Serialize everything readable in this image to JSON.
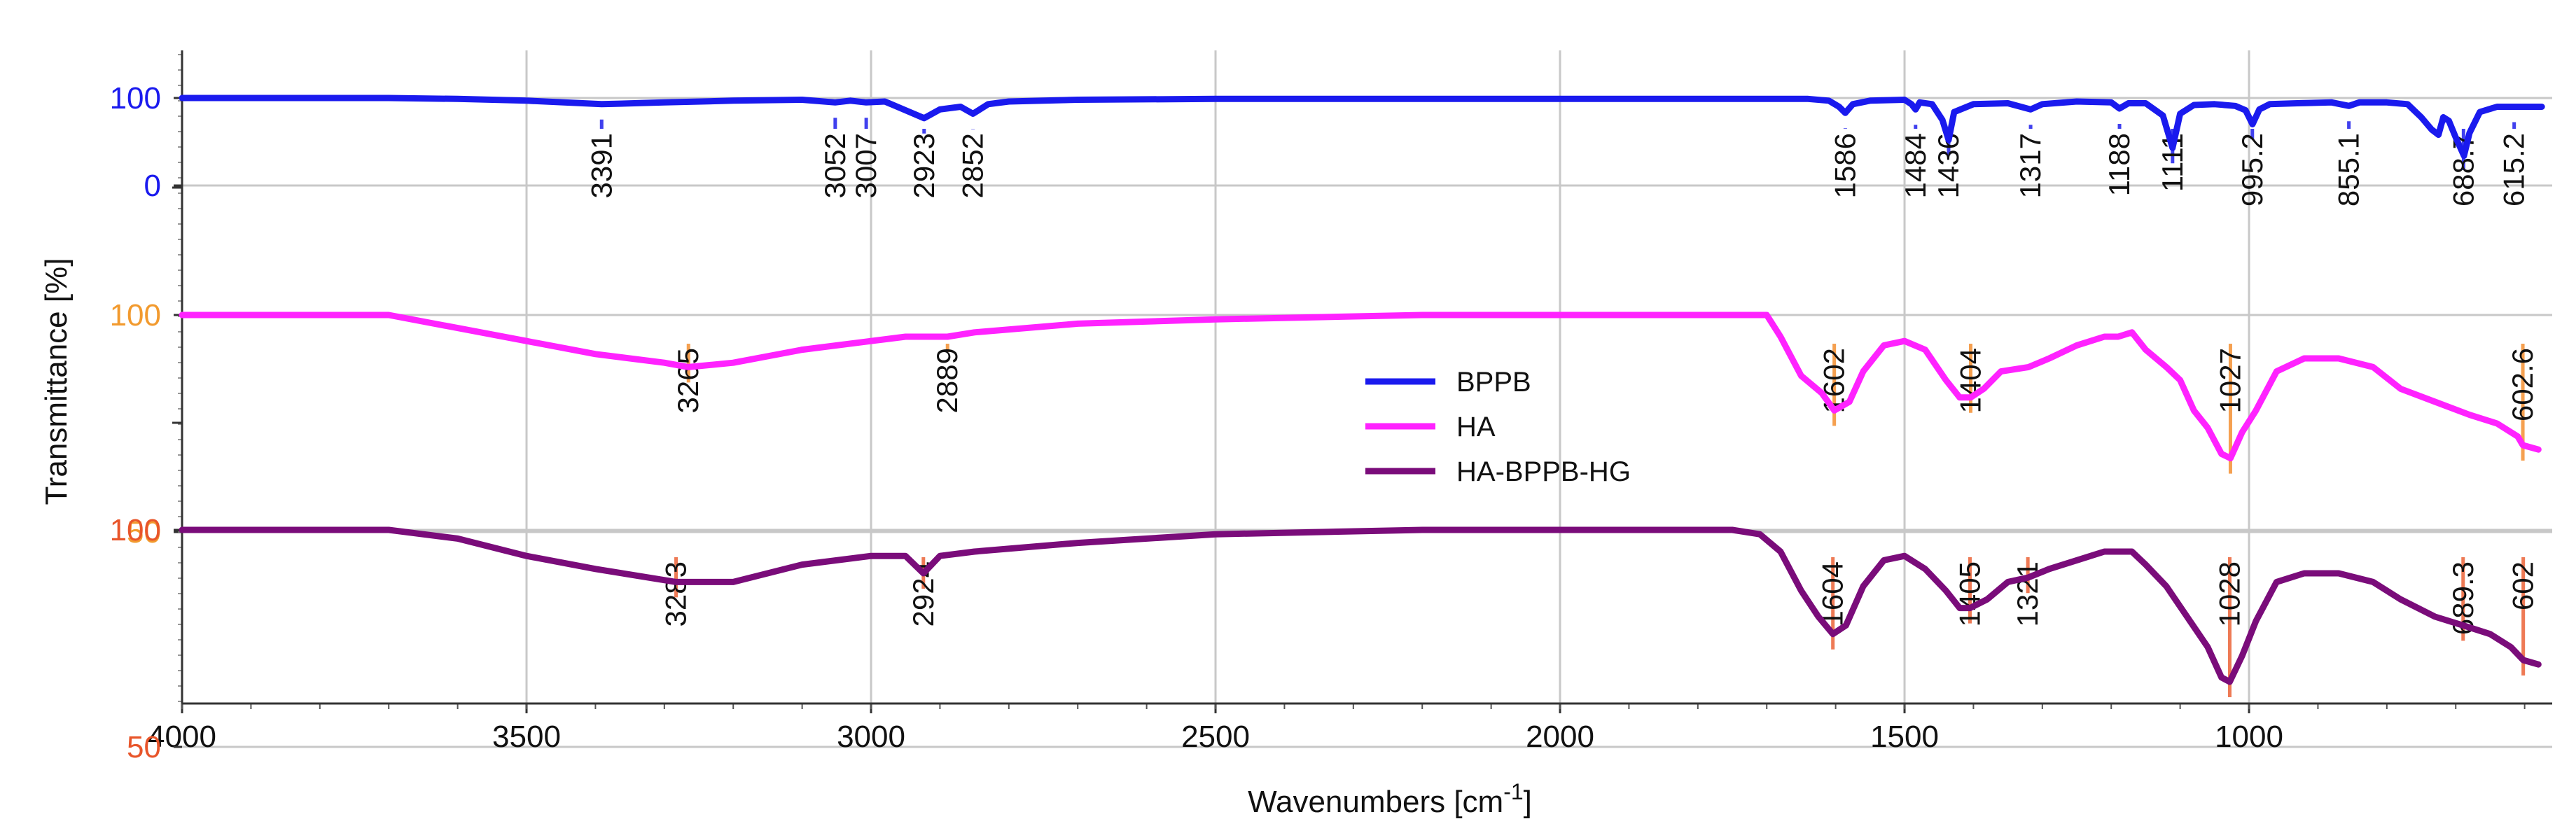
{
  "chart_data": {
    "type": "line",
    "xlabel": "Wavenumbers [cm",
    "xlabel_sup": "-1",
    "xlabel_close": "]",
    "ylabel": "Transmittance [%]",
    "xlim": [
      4000,
      560
    ],
    "x_ticks": [
      4000,
      3500,
      3000,
      2500,
      2000,
      1500,
      1000
    ],
    "grid": true,
    "legend_position": "center",
    "series": [
      {
        "name": "BPPB",
        "color": "#1a1aee",
        "label_color": "#1a1aee",
        "peak_line_color": "#4040ee",
        "y_ticks": [
          "100",
          "0"
        ],
        "points": [
          [
            4000,
            100
          ],
          [
            3700,
            100
          ],
          [
            3600,
            99
          ],
          [
            3500,
            97
          ],
          [
            3391,
            93
          ],
          [
            3300,
            95
          ],
          [
            3200,
            97
          ],
          [
            3100,
            98
          ],
          [
            3052,
            95
          ],
          [
            3030,
            97
          ],
          [
            3007,
            95
          ],
          [
            2980,
            96
          ],
          [
            2950,
            86
          ],
          [
            2923,
            77
          ],
          [
            2900,
            87
          ],
          [
            2870,
            90
          ],
          [
            2852,
            82
          ],
          [
            2830,
            93
          ],
          [
            2800,
            96
          ],
          [
            2700,
            98
          ],
          [
            2500,
            99
          ],
          [
            2300,
            99
          ],
          [
            2000,
            99
          ],
          [
            1800,
            99
          ],
          [
            1700,
            99
          ],
          [
            1640,
            99
          ],
          [
            1610,
            97
          ],
          [
            1595,
            90
          ],
          [
            1586,
            83
          ],
          [
            1575,
            93
          ],
          [
            1550,
            97
          ],
          [
            1500,
            98
          ],
          [
            1490,
            93
          ],
          [
            1484,
            87
          ],
          [
            1478,
            95
          ],
          [
            1460,
            93
          ],
          [
            1445,
            75
          ],
          [
            1436,
            52
          ],
          [
            1428,
            84
          ],
          [
            1400,
            93
          ],
          [
            1350,
            94
          ],
          [
            1317,
            87
          ],
          [
            1300,
            93
          ],
          [
            1250,
            96
          ],
          [
            1200,
            95
          ],
          [
            1188,
            88
          ],
          [
            1175,
            94
          ],
          [
            1150,
            94
          ],
          [
            1125,
            80
          ],
          [
            1111,
            43
          ],
          [
            1100,
            82
          ],
          [
            1080,
            92
          ],
          [
            1050,
            93
          ],
          [
            1020,
            91
          ],
          [
            1005,
            86
          ],
          [
            995,
            70
          ],
          [
            985,
            87
          ],
          [
            970,
            93
          ],
          [
            930,
            94
          ],
          [
            880,
            95
          ],
          [
            855,
            91
          ],
          [
            840,
            95
          ],
          [
            800,
            95
          ],
          [
            770,
            93
          ],
          [
            750,
            78
          ],
          [
            735,
            64
          ],
          [
            725,
            58
          ],
          [
            718,
            78
          ],
          [
            710,
            74
          ],
          [
            700,
            55
          ],
          [
            688,
            34
          ],
          [
            680,
            60
          ],
          [
            665,
            84
          ],
          [
            640,
            90
          ],
          [
            615,
            90
          ],
          [
            600,
            90
          ],
          [
            575,
            90
          ]
        ],
        "peaks": [
          "3391",
          "3052",
          "3007",
          "2923",
          "2852",
          "1586",
          "1484",
          "1436",
          "1317",
          "1188",
          "1111",
          "995.2",
          "855.1",
          "688.7",
          "615.2"
        ],
        "peak_x": [
          3391,
          3052,
          3007,
          2923,
          2852,
          1586,
          1484,
          1436,
          1317,
          1188,
          1111,
          995.2,
          855.1,
          688.7,
          615.2
        ]
      },
      {
        "name": "HA",
        "color": "#ff22ff",
        "label_color": "#f29a2e",
        "peak_line_color": "#f5a050",
        "y_ticks": [
          "100",
          "50"
        ],
        "points": [
          [
            4000,
            100
          ],
          [
            3700,
            100
          ],
          [
            3600,
            97
          ],
          [
            3500,
            94
          ],
          [
            3400,
            91
          ],
          [
            3300,
            89
          ],
          [
            3265,
            88
          ],
          [
            3200,
            89
          ],
          [
            3100,
            92
          ],
          [
            3000,
            94
          ],
          [
            2950,
            95
          ],
          [
            2889,
            95
          ],
          [
            2850,
            96
          ],
          [
            2700,
            98
          ],
          [
            2500,
            99
          ],
          [
            2200,
            100
          ],
          [
            1900,
            100
          ],
          [
            1750,
            100
          ],
          [
            1700,
            100
          ],
          [
            1680,
            95
          ],
          [
            1650,
            86
          ],
          [
            1620,
            82
          ],
          [
            1602,
            78
          ],
          [
            1580,
            80
          ],
          [
            1560,
            87
          ],
          [
            1530,
            93
          ],
          [
            1500,
            94
          ],
          [
            1470,
            92
          ],
          [
            1440,
            85
          ],
          [
            1420,
            81
          ],
          [
            1404,
            81
          ],
          [
            1385,
            83
          ],
          [
            1360,
            87
          ],
          [
            1320,
            88
          ],
          [
            1290,
            90
          ],
          [
            1250,
            93
          ],
          [
            1210,
            95
          ],
          [
            1190,
            95
          ],
          [
            1170,
            96
          ],
          [
            1150,
            92
          ],
          [
            1120,
            88
          ],
          [
            1100,
            85
          ],
          [
            1080,
            78
          ],
          [
            1060,
            74
          ],
          [
            1040,
            68
          ],
          [
            1027,
            67
          ],
          [
            1010,
            73
          ],
          [
            990,
            78
          ],
          [
            960,
            87
          ],
          [
            920,
            90
          ],
          [
            870,
            90
          ],
          [
            820,
            88
          ],
          [
            780,
            83
          ],
          [
            730,
            80
          ],
          [
            680,
            77
          ],
          [
            640,
            75
          ],
          [
            610,
            72
          ],
          [
            602.6,
            70
          ],
          [
            580,
            69
          ]
        ],
        "peaks": [
          "3265",
          "2889",
          "1602",
          "1404",
          "1027",
          "602.6"
        ],
        "peak_x": [
          3265,
          2889,
          1602,
          1404,
          1027,
          602.6
        ]
      },
      {
        "name": "HA-BPPB-HG",
        "color": "#7a0c7a",
        "label_color": "#e8552a",
        "peak_line_color": "#ee7a55",
        "y_ticks": [
          "100",
          "50"
        ],
        "points": [
          [
            4000,
            100
          ],
          [
            3700,
            100
          ],
          [
            3600,
            98
          ],
          [
            3500,
            94
          ],
          [
            3400,
            91
          ],
          [
            3283,
            88
          ],
          [
            3200,
            88
          ],
          [
            3100,
            92
          ],
          [
            3000,
            94
          ],
          [
            2950,
            94
          ],
          [
            2924,
            90
          ],
          [
            2900,
            94
          ],
          [
            2850,
            95
          ],
          [
            2700,
            97
          ],
          [
            2500,
            99
          ],
          [
            2200,
            100
          ],
          [
            1900,
            100
          ],
          [
            1750,
            100
          ],
          [
            1710,
            99
          ],
          [
            1680,
            95
          ],
          [
            1650,
            86
          ],
          [
            1625,
            80
          ],
          [
            1604,
            76
          ],
          [
            1585,
            78
          ],
          [
            1560,
            87
          ],
          [
            1530,
            93
          ],
          [
            1500,
            94
          ],
          [
            1470,
            91
          ],
          [
            1440,
            86
          ],
          [
            1420,
            82
          ],
          [
            1405,
            82
          ],
          [
            1380,
            84
          ],
          [
            1350,
            88
          ],
          [
            1321,
            89
          ],
          [
            1290,
            91
          ],
          [
            1250,
            93
          ],
          [
            1210,
            95
          ],
          [
            1190,
            95
          ],
          [
            1170,
            95
          ],
          [
            1150,
            92
          ],
          [
            1120,
            87
          ],
          [
            1090,
            80
          ],
          [
            1060,
            73
          ],
          [
            1040,
            66
          ],
          [
            1028,
            65
          ],
          [
            1010,
            71
          ],
          [
            990,
            79
          ],
          [
            960,
            88
          ],
          [
            920,
            90
          ],
          [
            870,
            90
          ],
          [
            820,
            88
          ],
          [
            780,
            84
          ],
          [
            730,
            80
          ],
          [
            689.3,
            78
          ],
          [
            650,
            76
          ],
          [
            620,
            73
          ],
          [
            602,
            70
          ],
          [
            580,
            69
          ]
        ],
        "peaks": [
          "3283",
          "2924",
          "1604",
          "1405",
          "1321",
          "1028",
          "689.3",
          "602"
        ],
        "peak_x": [
          3283,
          2924,
          1604,
          1405,
          1321,
          1028,
          689.3,
          602
        ]
      }
    ]
  }
}
